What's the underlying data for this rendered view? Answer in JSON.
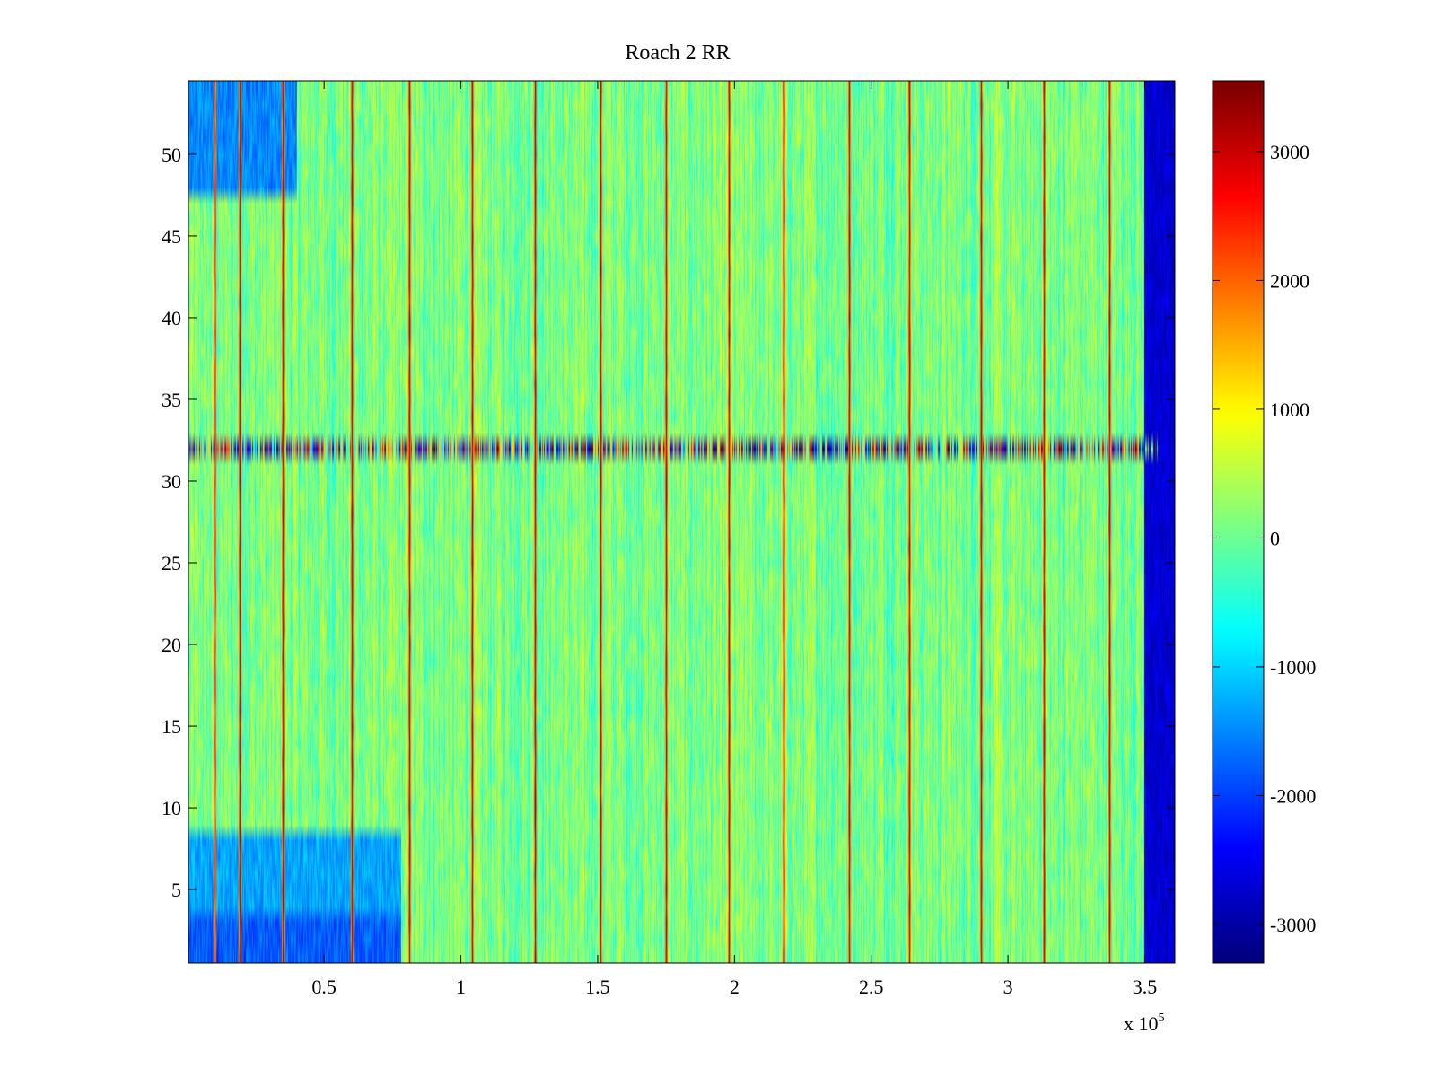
{
  "chart_data": {
    "type": "heatmap",
    "title": "Roach 2 RR",
    "xlabel": "",
    "ylabel": "",
    "x_range": [
      400,
      361000
    ],
    "x_range_scaled": [
      0.004,
      3.61
    ],
    "y_range": [
      0.5,
      54.5
    ],
    "x_exponent_label": "x 10",
    "x_exponent_power": "5",
    "x_ticks": [
      0.5,
      1,
      1.5,
      2,
      2.5,
      3,
      3.5
    ],
    "x_tick_labels": [
      "0.5",
      "1",
      "1.5",
      "2",
      "2.5",
      "3",
      "3.5"
    ],
    "y_ticks": [
      5,
      10,
      15,
      20,
      25,
      30,
      35,
      40,
      45,
      50
    ],
    "y_tick_labels": [
      "5",
      "10",
      "15",
      "20",
      "25",
      "30",
      "35",
      "40",
      "45",
      "50"
    ],
    "rows": 54,
    "background_value": 100,
    "color_limits": [
      -3300,
      3550
    ],
    "colormap": "jet",
    "colorbar_ticks": [
      -3000,
      -2000,
      -1000,
      0,
      1000,
      2000,
      3000
    ],
    "colorbar_tick_labels": [
      "-3000",
      "-2000",
      "-1000",
      "0",
      "1000",
      "2000",
      "3000"
    ],
    "high_stripe_positions_x1e5": [
      0.1,
      0.19,
      0.35,
      0.6,
      0.81,
      1.04,
      1.27,
      1.51,
      1.75,
      1.98,
      2.18,
      2.42,
      2.64,
      2.9,
      3.13,
      3.37
    ],
    "row_32_value_range": [
      -3300,
      3000
    ],
    "regions": [
      {
        "description": "low band rows 1-3",
        "x_range_1e5": [
          0.0,
          0.78
        ],
        "rows": [
          1,
          3
        ],
        "value": -1800
      },
      {
        "description": "low band rows 4-8",
        "x_range_1e5": [
          0.0,
          0.78
        ],
        "rows": [
          4,
          8
        ],
        "value": -1300
      },
      {
        "description": "low band rows 48-54",
        "x_range_1e5": [
          0.0,
          0.4
        ],
        "rows": [
          48,
          54
        ],
        "value": -1500
      },
      {
        "description": "right edge band",
        "x_range_1e5": [
          3.5,
          3.61
        ],
        "rows": [
          1,
          54
        ],
        "value": -2700
      }
    ]
  }
}
